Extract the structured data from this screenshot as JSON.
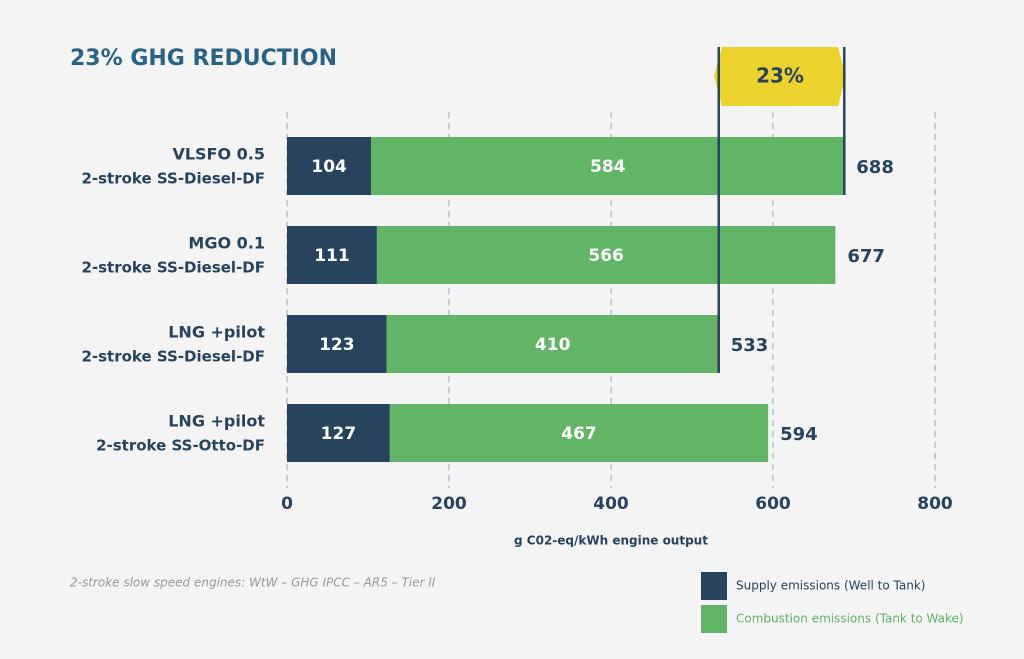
{
  "chart_data": {
    "type": "bar",
    "orientation": "horizontal",
    "stacked": true,
    "title": "23% GHG REDUCTION",
    "categories": [
      "VLSFO 0.5",
      "MGO 0.1",
      "LNG +pilot",
      "LNG +pilot"
    ],
    "engines": [
      "2-stroke SS-Diesel-DF",
      "2-stroke SS-Diesel-DF",
      "2-stroke SS-Diesel-DF",
      "2-stroke SS-Otto-DF"
    ],
    "series": [
      {
        "name": "Supply emissions (Well to Tank)",
        "color": "#27435e",
        "values": [
          104,
          111,
          123,
          127
        ]
      },
      {
        "name": "Combustion emissions (Tank to Wake)",
        "color": "#62b466",
        "values": [
          584,
          566,
          410,
          467
        ]
      }
    ],
    "totals": [
      688,
      677,
      533,
      594
    ],
    "annotation": "23%",
    "xlim": [
      0,
      800
    ],
    "xticks": [
      0,
      200,
      400,
      600,
      800
    ],
    "xlabel": "g C02-eq/kWh engine output",
    "grid": true,
    "footnote": "2-stroke slow speed engines: WtW – GHG IPCC – AR5 – Tier II"
  }
}
